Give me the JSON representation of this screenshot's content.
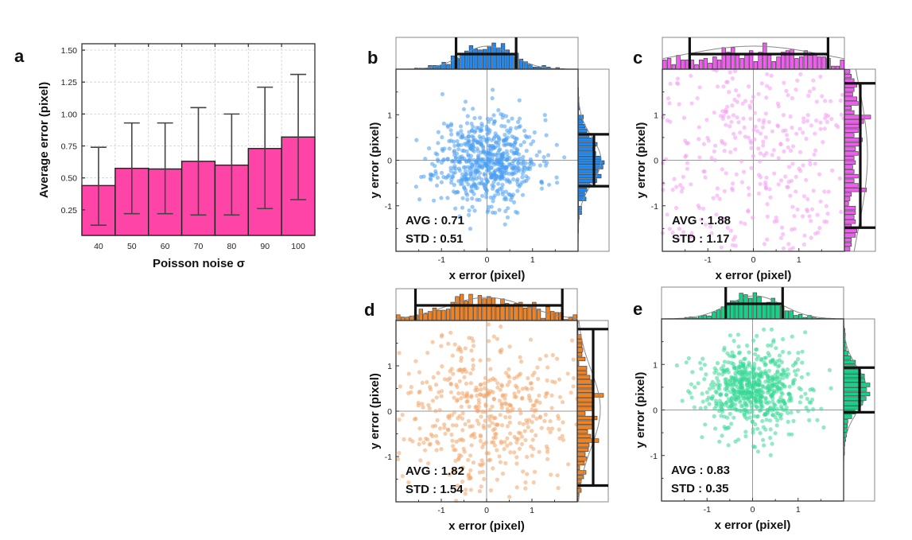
{
  "chart_data": [
    {
      "id": "a",
      "type": "bar",
      "panel_label": "a",
      "title": "",
      "xlabel": "Poisson noise σ",
      "ylabel": "Average error (pixel)",
      "categories": [
        "40",
        "50",
        "60",
        "70",
        "80",
        "90",
        "100"
      ],
      "values": [
        0.44,
        0.575,
        0.57,
        0.63,
        0.6,
        0.73,
        0.82
      ],
      "error_upper": [
        0.74,
        0.93,
        0.93,
        1.05,
        1.0,
        1.21,
        1.31
      ],
      "error_lower": [
        0.13,
        0.22,
        0.22,
        0.21,
        0.21,
        0.26,
        0.33
      ],
      "ylim": [
        0.05,
        1.55
      ],
      "yticks": [
        0.25,
        0.5,
        0.75,
        1.0,
        1.25,
        1.5
      ],
      "ytick_labels": [
        "0.25",
        "0.50",
        "0.75",
        "1.00",
        "1.25",
        "1.50"
      ],
      "grid": true,
      "bar_color": "#ff44a8",
      "edge_color": "#222222"
    },
    {
      "id": "b",
      "type": "scatter",
      "panel_label": "b",
      "xlabel": "x error (pixel)",
      "ylabel": "y error (pixel)",
      "xlim": [
        -2,
        2
      ],
      "ylim": [
        -2,
        2
      ],
      "xticks": [
        -1,
        0,
        1
      ],
      "yticks": [
        -1,
        0,
        1
      ],
      "xtick_labels": [
        "-1",
        "0",
        "1"
      ],
      "ytick_labels": [
        "-1",
        "0",
        "1"
      ],
      "stats": {
        "avg_label": "AVG : 0.71",
        "std_label": "STD : 0.51"
      },
      "distribution": {
        "n": 650,
        "x_mean": 0.0,
        "x_std": 0.55,
        "y_mean": 0.0,
        "y_std": 0.5,
        "seed": 11
      },
      "marginal_box_x": [
        -0.68,
        0.64
      ],
      "marginal_box_y": [
        -0.57,
        0.57
      ],
      "dot_color": "#4b9ef2",
      "hist_color": "#1e88f0"
    },
    {
      "id": "c",
      "type": "scatter",
      "panel_label": "c",
      "xlabel": "x error (pixel)",
      "ylabel": "y error (pixel)",
      "xlim": [
        -2,
        2
      ],
      "ylim": [
        -2,
        2
      ],
      "xticks": [
        -1,
        0,
        1
      ],
      "yticks": [
        -1,
        0,
        1
      ],
      "xtick_labels": [
        "-1",
        "0",
        "1"
      ],
      "ytick_labels": [
        "-1",
        "0",
        "1"
      ],
      "stats": {
        "avg_label": "AVG : 1.88",
        "std_label": "STD : 1.17"
      },
      "distribution": {
        "n": 520,
        "x_mean": 0.0,
        "x_std": 1.6,
        "y_mean": 0.1,
        "y_std": 1.6,
        "seed": 23
      },
      "marginal_box_x": [
        -1.4,
        1.64
      ],
      "marginal_box_y": [
        -1.48,
        1.69
      ],
      "dot_color": "#f49af2",
      "hist_color": "#ef5cef"
    },
    {
      "id": "d",
      "type": "scatter",
      "panel_label": "d",
      "xlabel": "x error (pixel)",
      "ylabel": "y error (pixel)",
      "xlim": [
        -2,
        2
      ],
      "ylim": [
        -2,
        2
      ],
      "xticks": [
        -1,
        0,
        1
      ],
      "yticks": [
        -1,
        0,
        1
      ],
      "xtick_labels": [
        "-1",
        "0",
        "1"
      ],
      "ytick_labels": [
        "-1",
        "0",
        "1"
      ],
      "stats": {
        "avg_label": "AVG : 1.82",
        "std_label": "STD : 1.54"
      },
      "distribution": {
        "n": 480,
        "x_mean": 0.0,
        "x_std": 0.9,
        "y_mean": 0.05,
        "y_std": 0.85,
        "seed": 37
      },
      "marginal_box_x": [
        -1.57,
        1.67
      ],
      "marginal_box_y": [
        -1.64,
        1.81
      ],
      "dot_color": "#f3a468",
      "hist_color": "#f08222"
    },
    {
      "id": "e",
      "type": "scatter",
      "panel_label": "e",
      "xlabel": "x error (pixel)",
      "ylabel": "y error (pixel)",
      "xlim": [
        -2,
        2
      ],
      "ylim": [
        -2,
        2
      ],
      "xticks": [
        -1,
        0,
        1
      ],
      "yticks": [
        -1,
        0,
        1
      ],
      "xtick_labels": [
        "-1",
        "0",
        "1"
      ],
      "ytick_labels": [
        "-1",
        "0",
        "1"
      ],
      "stats": {
        "avg_label": "AVG : 0.83",
        "std_label": "STD : 0.35"
      },
      "distribution": {
        "n": 650,
        "x_mean": 0.05,
        "x_std": 0.6,
        "y_mean": 0.45,
        "y_std": 0.48,
        "seed": 53
      },
      "marginal_box_x": [
        -0.59,
        0.66
      ],
      "marginal_box_y": [
        -0.05,
        0.93
      ],
      "dot_color": "#36d996",
      "hist_color": "#12d488"
    }
  ]
}
